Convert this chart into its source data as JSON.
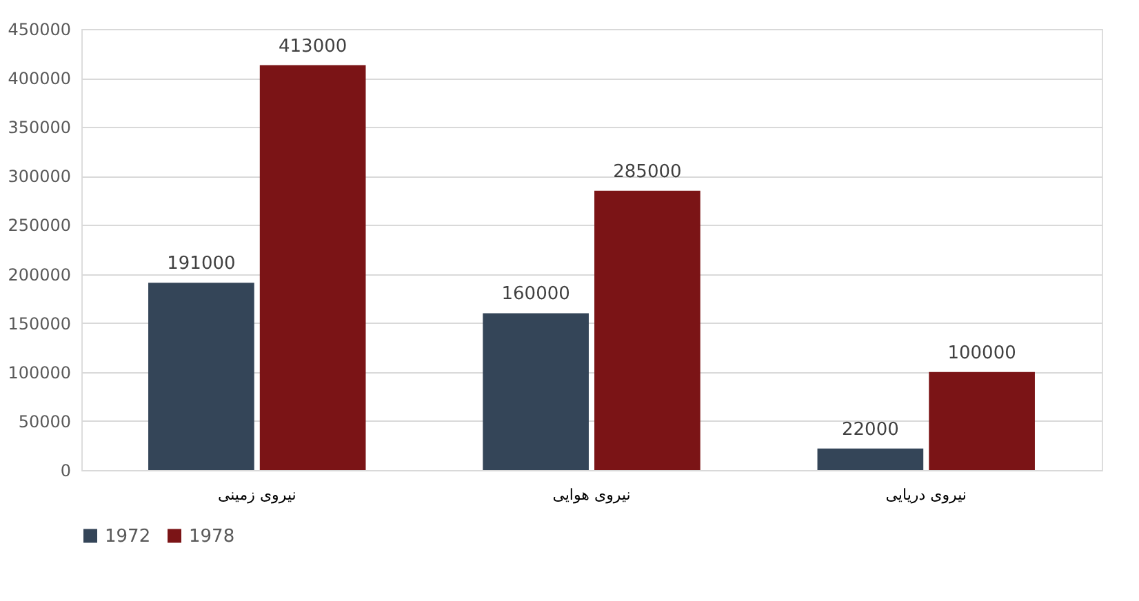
{
  "chart_data": {
    "type": "bar",
    "categories": [
      "نیروی زمینی",
      "نیروی هوایی",
      "نیروی دریایی"
    ],
    "series": [
      {
        "name": "1972",
        "color": "#344558",
        "values": [
          191000,
          160000,
          22000
        ]
      },
      {
        "name": "1978",
        "color": "#7b1416",
        "values": [
          413000,
          285000,
          100000
        ]
      }
    ],
    "ylim": [
      0,
      450000
    ],
    "yticks": [
      0,
      50000,
      100000,
      150000,
      200000,
      250000,
      300000,
      350000,
      400000,
      450000
    ],
    "grid": "y",
    "legend": "bottom",
    "data_labels": true
  }
}
